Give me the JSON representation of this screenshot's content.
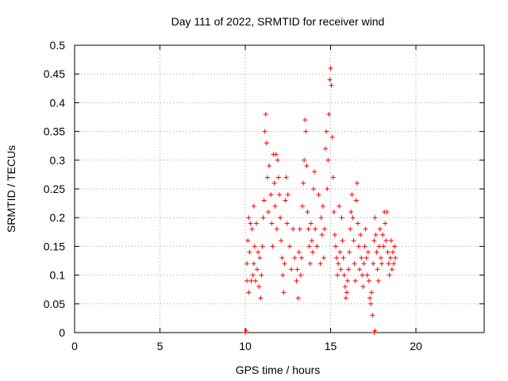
{
  "chart_data": {
    "type": "scatter",
    "title": "Day 111 of 2022, SRMTID for receiver wind",
    "xlabel": "GPS time / hours",
    "ylabel": "SRMTID / TECUs",
    "xlim": [
      0,
      24
    ],
    "ylim": [
      0,
      0.5
    ],
    "xticks": [
      0,
      5,
      10,
      15,
      20
    ],
    "xtick_labels": [
      "0",
      "5",
      "10",
      "15",
      "20"
    ],
    "yticks": [
      0,
      0.05,
      0.1,
      0.15,
      0.2,
      0.25,
      0.3,
      0.35,
      0.4,
      0.45,
      0.5
    ],
    "ytick_labels": [
      "0",
      "0.05",
      "0.1",
      "0.15",
      "0.2",
      "0.25",
      "0.3",
      "0.35",
      "0.4",
      "0.45",
      "0.5"
    ],
    "grid": true,
    "marker": "+",
    "colors": {
      "series": "#ff0000",
      "axis": "#000000",
      "grid": "#a0a0a0"
    },
    "series": [
      {
        "name": "SRMTID",
        "points": [
          [
            10.0,
            0.0
          ],
          [
            10.05,
            0.003
          ],
          [
            17.55,
            0.0
          ],
          [
            17.6,
            0.003
          ],
          [
            10.1,
            0.12
          ],
          [
            10.1,
            0.09
          ],
          [
            10.15,
            0.16
          ],
          [
            10.2,
            0.2
          ],
          [
            10.2,
            0.07
          ],
          [
            10.25,
            0.14
          ],
          [
            10.3,
            0.19
          ],
          [
            10.35,
            0.09
          ],
          [
            10.4,
            0.18
          ],
          [
            10.45,
            0.1
          ],
          [
            10.5,
            0.22
          ],
          [
            10.5,
            0.12
          ],
          [
            10.55,
            0.15
          ],
          [
            10.6,
            0.09
          ],
          [
            10.65,
            0.19
          ],
          [
            10.7,
            0.11
          ],
          [
            10.75,
            0.14
          ],
          [
            10.8,
            0.08
          ],
          [
            10.85,
            0.13
          ],
          [
            10.9,
            0.06
          ],
          [
            10.95,
            0.1
          ],
          [
            11.0,
            0.15
          ],
          [
            11.05,
            0.2
          ],
          [
            11.1,
            0.23
          ],
          [
            11.15,
            0.35
          ],
          [
            11.2,
            0.38
          ],
          [
            11.25,
            0.33
          ],
          [
            11.3,
            0.27
          ],
          [
            11.35,
            0.21
          ],
          [
            11.4,
            0.29
          ],
          [
            11.5,
            0.24
          ],
          [
            11.55,
            0.19
          ],
          [
            11.6,
            0.15
          ],
          [
            11.65,
            0.31
          ],
          [
            11.7,
            0.26
          ],
          [
            11.75,
            0.22
          ],
          [
            11.8,
            0.31
          ],
          [
            11.85,
            0.18
          ],
          [
            11.9,
            0.3
          ],
          [
            11.95,
            0.27
          ],
          [
            12.0,
            0.24
          ],
          [
            12.05,
            0.2
          ],
          [
            12.1,
            0.16
          ],
          [
            12.15,
            0.13
          ],
          [
            12.2,
            0.1
          ],
          [
            12.25,
            0.07
          ],
          [
            12.3,
            0.12
          ],
          [
            12.35,
            0.23
          ],
          [
            12.4,
            0.27
          ],
          [
            12.45,
            0.19
          ],
          [
            12.5,
            0.24
          ],
          [
            12.6,
            0.15
          ],
          [
            12.7,
            0.11
          ],
          [
            12.8,
            0.18
          ],
          [
            12.9,
            0.13
          ],
          [
            13.0,
            0.09
          ],
          [
            13.05,
            0.11
          ],
          [
            13.1,
            0.06
          ],
          [
            13.15,
            0.14
          ],
          [
            13.2,
            0.18
          ],
          [
            13.25,
            0.1
          ],
          [
            13.3,
            0.13
          ],
          [
            13.35,
            0.22
          ],
          [
            13.4,
            0.26
          ],
          [
            13.45,
            0.3
          ],
          [
            13.5,
            0.37
          ],
          [
            13.55,
            0.35
          ],
          [
            13.6,
            0.29
          ],
          [
            13.65,
            0.21
          ],
          [
            13.7,
            0.18
          ],
          [
            13.75,
            0.15
          ],
          [
            13.8,
            0.12
          ],
          [
            13.85,
            0.19
          ],
          [
            13.9,
            0.16
          ],
          [
            13.95,
            0.14
          ],
          [
            14.0,
            0.25
          ],
          [
            14.05,
            0.28
          ],
          [
            14.1,
            0.18
          ],
          [
            14.2,
            0.15
          ],
          [
            14.3,
            0.24
          ],
          [
            14.4,
            0.12
          ],
          [
            14.45,
            0.2
          ],
          [
            14.5,
            0.17
          ],
          [
            14.55,
            0.22
          ],
          [
            14.6,
            0.13
          ],
          [
            14.65,
            0.18
          ],
          [
            14.7,
            0.32
          ],
          [
            14.75,
            0.35
          ],
          [
            14.8,
            0.25
          ],
          [
            14.85,
            0.3
          ],
          [
            14.9,
            0.38
          ],
          [
            14.95,
            0.44
          ],
          [
            15.0,
            0.46
          ],
          [
            15.05,
            0.43
          ],
          [
            15.1,
            0.34
          ],
          [
            15.15,
            0.27
          ],
          [
            15.2,
            0.21
          ],
          [
            15.25,
            0.17
          ],
          [
            15.3,
            0.15
          ],
          [
            15.35,
            0.13
          ],
          [
            15.4,
            0.1
          ],
          [
            15.45,
            0.12
          ],
          [
            15.5,
            0.22
          ],
          [
            15.55,
            0.14
          ],
          [
            15.6,
            0.11
          ],
          [
            15.65,
            0.2
          ],
          [
            15.7,
            0.16
          ],
          [
            15.75,
            0.13
          ],
          [
            15.8,
            0.1
          ],
          [
            15.85,
            0.08
          ],
          [
            15.9,
            0.06
          ],
          [
            15.95,
            0.07
          ],
          [
            16.0,
            0.09
          ],
          [
            16.05,
            0.11
          ],
          [
            16.1,
            0.14
          ],
          [
            16.15,
            0.18
          ],
          [
            16.2,
            0.21
          ],
          [
            16.25,
            0.24
          ],
          [
            16.3,
            0.2
          ],
          [
            16.35,
            0.16
          ],
          [
            16.4,
            0.12
          ],
          [
            16.45,
            0.09
          ],
          [
            16.5,
            0.23
          ],
          [
            16.55,
            0.26
          ],
          [
            16.6,
            0.19
          ],
          [
            16.65,
            0.15
          ],
          [
            16.7,
            0.11
          ],
          [
            16.75,
            0.17
          ],
          [
            16.8,
            0.13
          ],
          [
            16.85,
            0.1
          ],
          [
            16.9,
            0.08
          ],
          [
            16.95,
            0.12
          ],
          [
            17.0,
            0.15
          ],
          [
            17.05,
            0.18
          ],
          [
            17.1,
            0.13
          ],
          [
            17.15,
            0.1
          ],
          [
            17.2,
            0.14
          ],
          [
            17.25,
            0.09
          ],
          [
            17.3,
            0.06
          ],
          [
            17.35,
            0.05
          ],
          [
            17.4,
            0.07
          ],
          [
            17.45,
            0.03
          ],
          [
            17.5,
            0.12
          ],
          [
            17.55,
            0.16
          ],
          [
            17.6,
            0.2
          ],
          [
            17.65,
            0.17
          ],
          [
            17.7,
            0.14
          ],
          [
            17.75,
            0.11
          ],
          [
            17.8,
            0.09
          ],
          [
            17.85,
            0.15
          ],
          [
            17.9,
            0.18
          ],
          [
            17.95,
            0.13
          ],
          [
            18.0,
            0.12
          ],
          [
            18.05,
            0.17
          ],
          [
            18.1,
            0.15
          ],
          [
            18.15,
            0.21
          ],
          [
            18.2,
            0.19
          ],
          [
            18.25,
            0.16
          ],
          [
            18.3,
            0.21
          ],
          [
            18.35,
            0.14
          ],
          [
            18.4,
            0.12
          ],
          [
            18.45,
            0.1
          ],
          [
            18.5,
            0.13
          ],
          [
            18.55,
            0.16
          ],
          [
            18.6,
            0.11
          ],
          [
            18.65,
            0.14
          ],
          [
            18.7,
            0.12
          ],
          [
            18.75,
            0.15
          ],
          [
            18.8,
            0.13
          ]
        ]
      }
    ]
  }
}
